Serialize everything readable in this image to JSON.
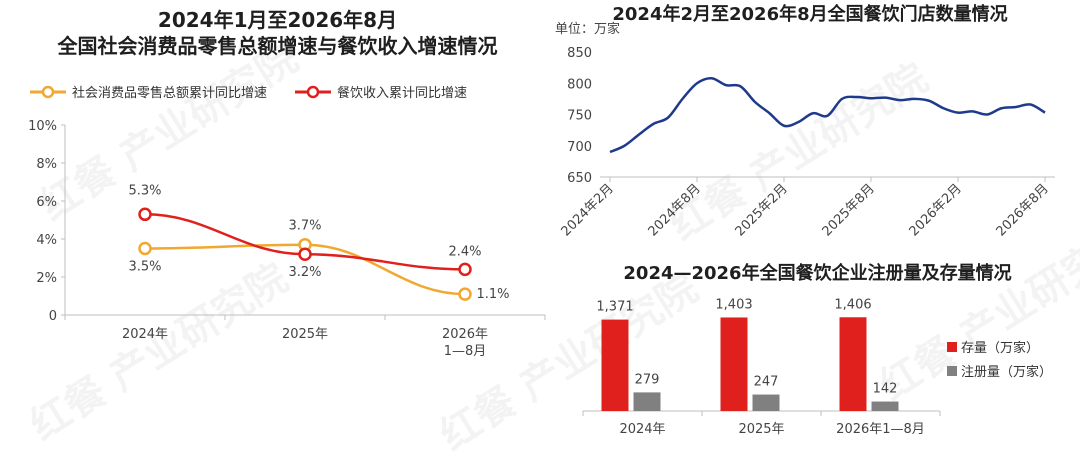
{
  "watermark": "红餐 产业研究院",
  "chart_data": [
    {
      "type": "line",
      "title": "2024年1月至2026年8月",
      "subtitle": "全国社会消费品零售总额增速与餐饮收入增速情况",
      "categories": [
        "2024年",
        "2025年",
        "2026年\n1—8月"
      ],
      "ylim": [
        0,
        10
      ],
      "y_ticks": [
        "0",
        "2%",
        "4%",
        "6%",
        "8%",
        "10%"
      ],
      "legend_position": "top",
      "series": [
        {
          "name": "社会消费品零售总额累计同比增速",
          "values": [
            3.5,
            3.7,
            1.1
          ],
          "labels": [
            "3.5%",
            "3.7%",
            "1.1%"
          ],
          "color": "#F0A830"
        },
        {
          "name": "餐饮收入累计同比增速",
          "values": [
            5.3,
            3.2,
            2.4
          ],
          "labels": [
            "5.3%",
            "3.2%",
            "2.4%"
          ],
          "color": "#E0201C"
        }
      ]
    },
    {
      "type": "line",
      "title": "2024年2月至2026年8月全国餐饮门店数量情况",
      "unit": "单位：万家",
      "ylim": [
        650,
        850
      ],
      "y_ticks": [
        "650",
        "700",
        "750",
        "800",
        "850"
      ],
      "x_ticks": [
        "2024年2月",
        "2024年8月",
        "2025年2月",
        "2025年8月",
        "2026年2月",
        "2026年8月"
      ],
      "color": "#1F3A8C",
      "x": [
        "2024年2月",
        "2024年3月",
        "2024年4月",
        "2024年5月",
        "2024年6月",
        "2024年7月",
        "2024年8月",
        "2024年9月",
        "2024年10月",
        "2024年11月",
        "2024年12月",
        "2025年1月",
        "2025年2月",
        "2025年3月",
        "2025年4月",
        "2025年5月",
        "2025年6月",
        "2025年7月",
        "2025年8月",
        "2025年9月",
        "2025年10月",
        "2025年11月",
        "2025年12月",
        "2026年1月",
        "2026年2月",
        "2026年3月",
        "2026年4月",
        "2026年5月",
        "2026年6月",
        "2026年7月",
        "2026年8月"
      ],
      "values": [
        690,
        700,
        718,
        735,
        745,
        775,
        800,
        808,
        797,
        795,
        770,
        752,
        732,
        738,
        752,
        748,
        775,
        778,
        776,
        777,
        773,
        775,
        772,
        760,
        753,
        755,
        750,
        760,
        762,
        766,
        753
      ]
    },
    {
      "type": "bar",
      "title": "2024—2026年全国餐饮企业注册量及存量情况",
      "categories": [
        "2024年",
        "2025年",
        "2026年1—8月"
      ],
      "legend_position": "right",
      "ylim": [
        0,
        1500
      ],
      "series": [
        {
          "name": "存量（万家）",
          "values": [
            1371,
            1403,
            1406
          ],
          "labels": [
            "1,371",
            "1,403",
            "1,406"
          ],
          "color": "#E0201C"
        },
        {
          "name": "注册量（万家）",
          "values": [
            279,
            247,
            142
          ],
          "labels": [
            "279",
            "247",
            "142"
          ],
          "color": "#808080"
        }
      ]
    }
  ]
}
